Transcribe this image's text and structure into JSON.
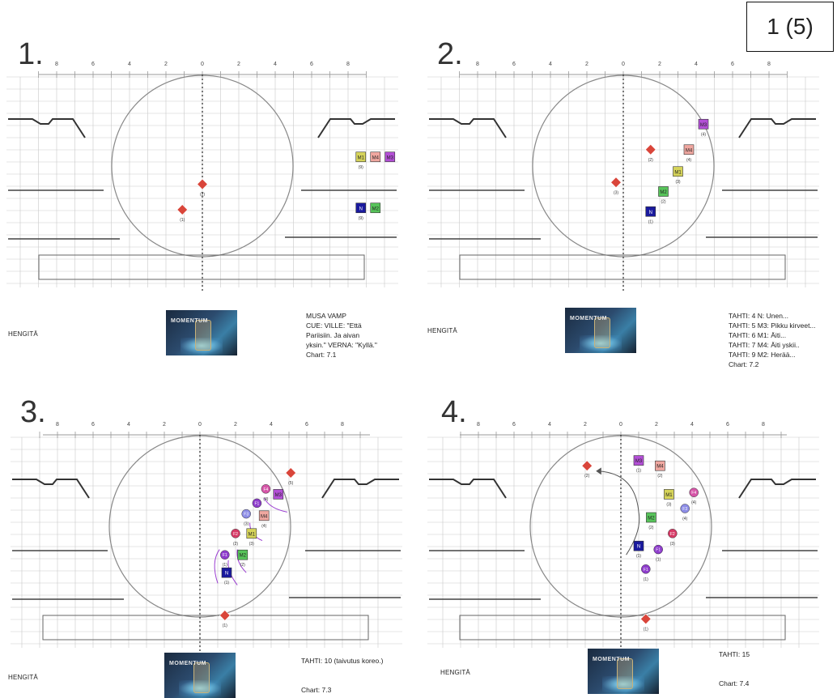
{
  "page_label": "1 (5)",
  "panels": [
    {
      "number": "1.",
      "hengita": "HENGITÄ",
      "notes": [
        "MUSA VAMP",
        "CUE: VILLE: \"Että",
        "Pariisiin. Ja aivan",
        "yksin.\" VERNA: \"Kyllä.\"",
        "Chart: 7.1"
      ],
      "logo": "MOMENTUM",
      "ruler_labels": [
        "8",
        "6",
        "4",
        "2",
        "0",
        "2",
        "4",
        "6",
        "8"
      ],
      "markers": [
        {
          "shape": "diamond",
          "label": "",
          "sub": "(2)",
          "x": 0,
          "y": -1
        },
        {
          "shape": "diamond",
          "label": "",
          "sub": "(1)",
          "x": -1.1,
          "y": -2.4
        },
        {
          "shape": "square",
          "label": "M1",
          "sub": "(9)",
          "x": 8.7,
          "y": 0.5
        },
        {
          "shape": "square",
          "label": "M4",
          "sub": "",
          "x": 9.5,
          "y": 0.5
        },
        {
          "shape": "square",
          "label": "M3",
          "sub": "",
          "x": 10.3,
          "y": 0.5
        },
        {
          "shape": "square",
          "label": "N",
          "sub": "(9)",
          "x": 8.7,
          "y": -2.3
        },
        {
          "shape": "square",
          "label": "M2",
          "sub": "",
          "x": 9.5,
          "y": -2.3
        }
      ]
    },
    {
      "number": "2.",
      "hengita": "HENGITÄ",
      "notes": [
        "TAHTI: 4 N: Unen...",
        "TAHTI: 5 M3: Pikku kirveet...",
        "TAHTI: 6 M1: Äiti...",
        "TAHTI: 7 M4: Äiti yskii..",
        "TAHTI: 9 M2: Herää...",
        "Chart: 7.2"
      ],
      "logo": "MOMENTUM",
      "ruler_labels": [
        "8",
        "6",
        "4",
        "2",
        "0",
        "2",
        "4",
        "6",
        "8"
      ],
      "markers": [
        {
          "shape": "diamond",
          "label": "",
          "sub": "(3)",
          "x": -0.4,
          "y": -0.9
        },
        {
          "shape": "diamond",
          "label": "",
          "sub": "(2)",
          "x": 1.5,
          "y": 0.9
        },
        {
          "shape": "square",
          "label": "N",
          "sub": "(1)",
          "x": 1.5,
          "y": -2.5
        },
        {
          "shape": "square",
          "label": "M2",
          "sub": "(2)",
          "x": 2.2,
          "y": -1.4
        },
        {
          "shape": "square",
          "label": "M1",
          "sub": "(3)",
          "x": 3.0,
          "y": -0.3
        },
        {
          "shape": "square",
          "label": "M4",
          "sub": "(4)",
          "x": 3.6,
          "y": 0.9
        },
        {
          "shape": "square",
          "label": "M3",
          "sub": "(4)",
          "x": 4.4,
          "y": 2.3
        }
      ]
    },
    {
      "number": "3.",
      "hengita": "HENGITÄ",
      "notes": [
        "TAHTI: 10 (taivutus koreo.)",
        "",
        "",
        "Chart: 7.3"
      ],
      "logo": "MOMENTUM",
      "ruler_labels": [
        "8",
        "6",
        "4",
        "2",
        "0",
        "2",
        "4",
        "6",
        "8"
      ],
      "markers": [
        {
          "shape": "diamond",
          "label": "",
          "sub": "(5)",
          "x": 5.1,
          "y": 3.0
        },
        {
          "shape": "diamond",
          "label": "",
          "sub": "(1)",
          "x": 1.4,
          "y": -5.0
        },
        {
          "shape": "circle",
          "label": "F4",
          "sub": "(4)",
          "x": 3.7,
          "y": 2.1
        },
        {
          "shape": "square",
          "label": "M3",
          "sub": "",
          "x": 4.4,
          "y": 1.8
        },
        {
          "shape": "circle",
          "label": "F1",
          "sub": "",
          "x": 3.2,
          "y": 1.3
        },
        {
          "shape": "square",
          "label": "M4",
          "sub": "(4)",
          "x": 3.6,
          "y": 0.6
        },
        {
          "shape": "circle",
          "label": "F3",
          "sub": "(3)",
          "x": 2.6,
          "y": 0.7
        },
        {
          "shape": "circle",
          "label": "F2",
          "sub": "(2)",
          "x": 2.0,
          "y": -0.4
        },
        {
          "shape": "square",
          "label": "M1",
          "sub": "(3)",
          "x": 2.9,
          "y": -0.4
        },
        {
          "shape": "circle",
          "label": "F1",
          "sub": "(1)",
          "x": 1.4,
          "y": -1.6
        },
        {
          "shape": "square",
          "label": "M2",
          "sub": "(2)",
          "x": 2.4,
          "y": -1.6
        },
        {
          "shape": "square",
          "label": "N",
          "sub": "(1)",
          "x": 1.5,
          "y": -2.6
        }
      ]
    },
    {
      "number": "4.",
      "hengita": "HENGITÄ",
      "notes": [
        "TAHTI: 15",
        "",
        "",
        "Chart: 7.4"
      ],
      "logo": "MOMENTUM",
      "ruler_labels": [
        "8",
        "6",
        "4",
        "2",
        "0",
        "2",
        "4",
        "6",
        "8"
      ],
      "markers": [
        {
          "shape": "diamond",
          "label": "",
          "sub": "(2)",
          "x": -1.9,
          "y": 3.4
        },
        {
          "shape": "diamond",
          "label": "",
          "sub": "(1)",
          "x": 1.4,
          "y": -5.2
        },
        {
          "shape": "square",
          "label": "M3",
          "sub": "(1)",
          "x": 1.0,
          "y": 3.7
        },
        {
          "shape": "square",
          "label": "M4",
          "sub": "(2)",
          "x": 2.2,
          "y": 3.4
        },
        {
          "shape": "square",
          "label": "M1",
          "sub": "(3)",
          "x": 2.7,
          "y": 1.8
        },
        {
          "shape": "circle",
          "label": "F4",
          "sub": "(4)",
          "x": 4.1,
          "y": 1.9
        },
        {
          "shape": "circle",
          "label": "F3",
          "sub": "(4)",
          "x": 3.6,
          "y": 1.0
        },
        {
          "shape": "square",
          "label": "M2",
          "sub": "(2)",
          "x": 1.7,
          "y": 0.5
        },
        {
          "shape": "circle",
          "label": "F2",
          "sub": "(3)",
          "x": 2.9,
          "y": -0.4
        },
        {
          "shape": "square",
          "label": "N",
          "sub": "(1)",
          "x": 1.0,
          "y": -1.1
        },
        {
          "shape": "circle",
          "label": "F1",
          "sub": "(1)",
          "x": 2.1,
          "y": -1.3
        },
        {
          "shape": "circle",
          "label": "F1",
          "sub": "(1)",
          "x": 1.4,
          "y": -2.4
        }
      ]
    }
  ],
  "colors": {
    "diamond": "#d9453a",
    "M1": "#d6d45a",
    "M2": "#57c45a",
    "M3": "#b34fd6",
    "M4": "#f0a7a0",
    "N": "#1a1a9e",
    "F1": "#8e3ccc",
    "F2": "#d63a66",
    "F3": "#8c8ce6",
    "F4": "#d655a8",
    "path": "#9a3cd1",
    "grid": "#c9c9c9"
  }
}
